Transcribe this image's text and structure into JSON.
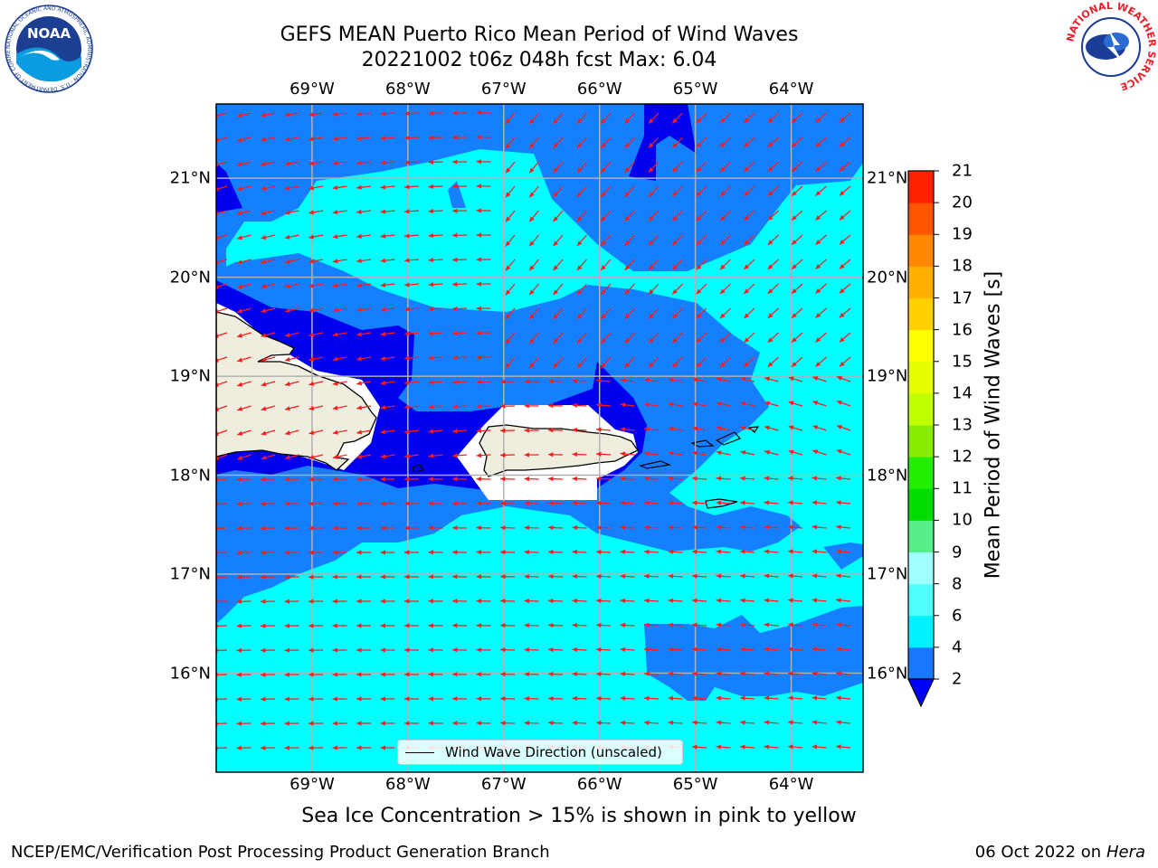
{
  "header": {
    "title_line1": "GEFS MEAN Puerto Rico Mean Period of Wind Waves",
    "title_line2": "20221002 t06z 048h fcst   Max: 6.04"
  },
  "logos": {
    "left": "NOAA",
    "left_ring": "NATIONAL OCEANIC AND ATMOSPHERIC ADMINISTRATION · U.S. DEPARTMENT OF COMMERCE",
    "right_ring": "NATIONAL WEATHER SERVICE"
  },
  "map": {
    "lon_labels": [
      "69°W",
      "68°W",
      "67°W",
      "66°W",
      "65°W",
      "64°W"
    ],
    "lat_labels": [
      "21°N",
      "20°N",
      "19°N",
      "18°N",
      "17°N",
      "16°N"
    ],
    "lon_range": [
      -70.0,
      -63.25
    ],
    "lat_range": [
      15.0,
      21.75
    ],
    "grid": true,
    "colors": {
      "land": "#eeedde",
      "ocean_2_4": "#1580ff",
      "ocean_4_6": "#00ffff",
      "ocean_lt_2": "#0000ee",
      "arrow": "#ff1a1a"
    }
  },
  "legend": {
    "label": "Wind Wave Direction (unscaled)"
  },
  "colorbar": {
    "label": "Mean Period of Wind Waves [s]",
    "ticks": [
      "2",
      "4",
      "6",
      "8",
      "9",
      "10",
      "11",
      "12",
      "13",
      "14",
      "15",
      "16",
      "17",
      "18",
      "19",
      "20",
      "21"
    ],
    "colors": [
      "#1978ff",
      "#00f0ff",
      "#50ffff",
      "#a0ffff",
      "#55ee88",
      "#00dd00",
      "#22ee00",
      "#88ee00",
      "#c0ff00",
      "#e6ff00",
      "#ffff00",
      "#ffd000",
      "#ffb000",
      "#ff8800",
      "#ff5500",
      "#ff2200"
    ],
    "under_color": "#0000ff"
  },
  "note": "Sea Ice Concentration > 15% is shown in pink to yellow",
  "footer": {
    "left": "NCEP/EMC/Verification Post Processing Product Generation Branch",
    "right_prefix": "06 Oct 2022 on ",
    "right_host": "Hera"
  }
}
